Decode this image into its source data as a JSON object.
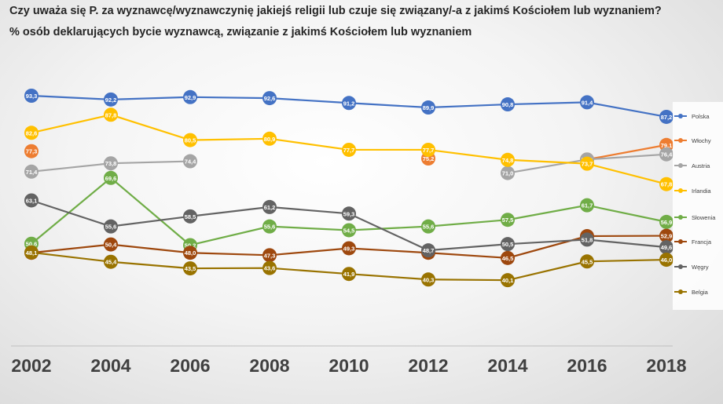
{
  "chart_data": {
    "type": "line",
    "title": "Czy uważa się P. za wyznawcę/wyznawczynię jakiejś religii lub czuje się związany/-a z jakimś Kościołem lub wyznaniem?",
    "subtitle": "% osób deklarujących bycie wyznawcą, związanie z jakimś Kościołem lub wyznaniem",
    "x": [
      "2002",
      "2004",
      "2006",
      "2008",
      "2010",
      "2012",
      "2014",
      "2016",
      "2018"
    ],
    "ylim": [
      20,
      100
    ],
    "grid": false,
    "legend_position": "right",
    "series": [
      {
        "name": "Polska",
        "color": "#4472C4",
        "values": [
          93.3,
          92.2,
          92.9,
          92.6,
          91.2,
          89.9,
          90.8,
          91.4,
          87.2
        ]
      },
      {
        "name": "Włochy",
        "color": "#ED7D31",
        "values": [
          77.3,
          null,
          null,
          null,
          null,
          75.2,
          null,
          74.9,
          79.1
        ]
      },
      {
        "name": "Austria",
        "color": "#A5A5A5",
        "values": [
          71.4,
          73.8,
          74.4,
          null,
          null,
          null,
          71.0,
          74.9,
          76.4
        ]
      },
      {
        "name": "Irlandia",
        "color": "#FFC000",
        "values": [
          82.6,
          87.8,
          80.5,
          80.9,
          77.7,
          77.7,
          74.8,
          73.7,
          67.8
        ]
      },
      {
        "name": "Słowenia",
        "color": "#70AD47",
        "values": [
          50.6,
          69.6,
          50.2,
          55.6,
          54.5,
          55.6,
          57.5,
          61.7,
          56.9
        ]
      },
      {
        "name": "Francja",
        "color": "#9E480E",
        "values": [
          48.0,
          50.4,
          48.0,
          47.3,
          49.3,
          48.0,
          46.5,
          52.8,
          52.9
        ]
      },
      {
        "name": "Węgry",
        "color": "#636363",
        "values": [
          63.1,
          55.6,
          58.5,
          61.2,
          59.3,
          48.7,
          50.5,
          51.8,
          49.6
        ]
      },
      {
        "name": "Belgia",
        "color": "#997300",
        "values": [
          48.1,
          45.4,
          43.5,
          43.6,
          41.9,
          40.3,
          40.1,
          45.5,
          46.0
        ]
      }
    ]
  }
}
